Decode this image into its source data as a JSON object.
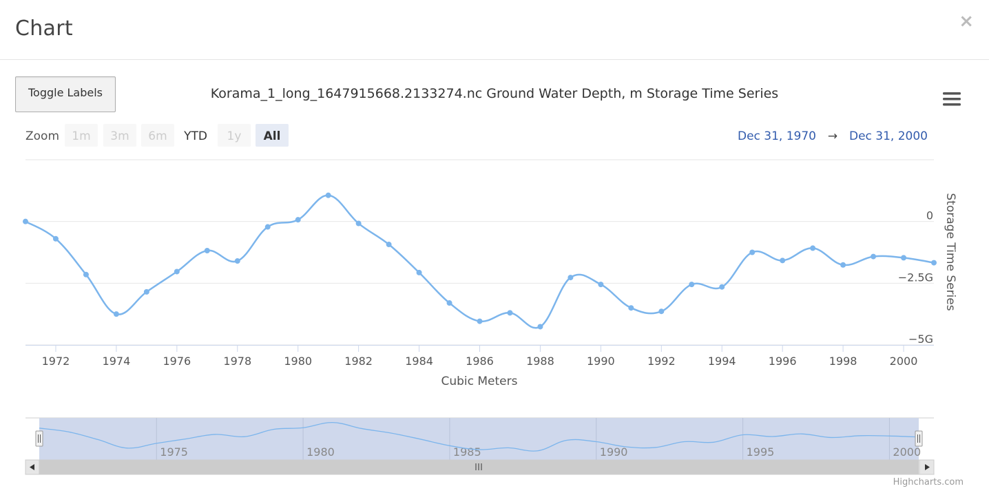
{
  "modal": {
    "title": "Chart",
    "close_symbol": "×"
  },
  "toggle_labels_label": "Toggle Labels",
  "menu_icon": "hamburger-menu-icon",
  "range_selector": {
    "zoom_label": "Zoom",
    "buttons": [
      {
        "label": "1m",
        "state": "disabled"
      },
      {
        "label": "3m",
        "state": "disabled"
      },
      {
        "label": "6m",
        "state": "disabled"
      },
      {
        "label": "YTD",
        "state": "normal"
      },
      {
        "label": "1y",
        "state": "disabled"
      },
      {
        "label": "All",
        "state": "selected"
      }
    ],
    "from_date": "Dec 31, 1970",
    "arrow": "→",
    "to_date": "Dec 31, 2000"
  },
  "credits": "Highcharts.com",
  "chart_data": {
    "type": "line",
    "title": "Korama_1_long_1647915668.2133274.nc Ground Water Depth, m Storage Time Series",
    "xlabel": "Cubic Meters",
    "ylabel": "Storage Time Series",
    "series_color": "#7cb5ec",
    "x": [
      1971,
      1972,
      1973,
      1974,
      1975,
      1976,
      1977,
      1978,
      1979,
      1980,
      1981,
      1982,
      1983,
      1984,
      1985,
      1986,
      1987,
      1988,
      1989,
      1990,
      1991,
      1992,
      1993,
      1994,
      1995,
      1996,
      1997,
      1998,
      1999,
      2000,
      2001
    ],
    "values": [
      0.0,
      -0.7,
      -2.15,
      -3.75,
      -2.85,
      -2.03,
      -1.18,
      -1.6,
      -0.22,
      0.07,
      1.06,
      -0.08,
      -0.93,
      -2.07,
      -3.3,
      -4.04,
      -3.7,
      -4.26,
      -2.27,
      -2.55,
      -3.5,
      -3.64,
      -2.55,
      -2.65,
      -1.25,
      -1.58,
      -1.08,
      -1.76,
      -1.42,
      -1.47,
      -1.67
    ],
    "xlim": [
      1971,
      2001
    ],
    "ylim": [
      -5,
      2.5
    ],
    "y_tick_values": [
      0,
      -2.5,
      -5
    ],
    "y_tick_labels": [
      "0",
      "−2.5G",
      "−5G"
    ],
    "x_tick_labels": [
      "1972",
      "1974",
      "1976",
      "1978",
      "1980",
      "1982",
      "1984",
      "1986",
      "1988",
      "1990",
      "1992",
      "1994",
      "1996",
      "1998",
      "2000"
    ],
    "navigator": {
      "tick_labels": [
        "1975",
        "1980",
        "1985",
        "1990",
        "1995",
        "2000"
      ],
      "fill_color": "#ccd6eb"
    },
    "grid": true,
    "legend": "none"
  }
}
